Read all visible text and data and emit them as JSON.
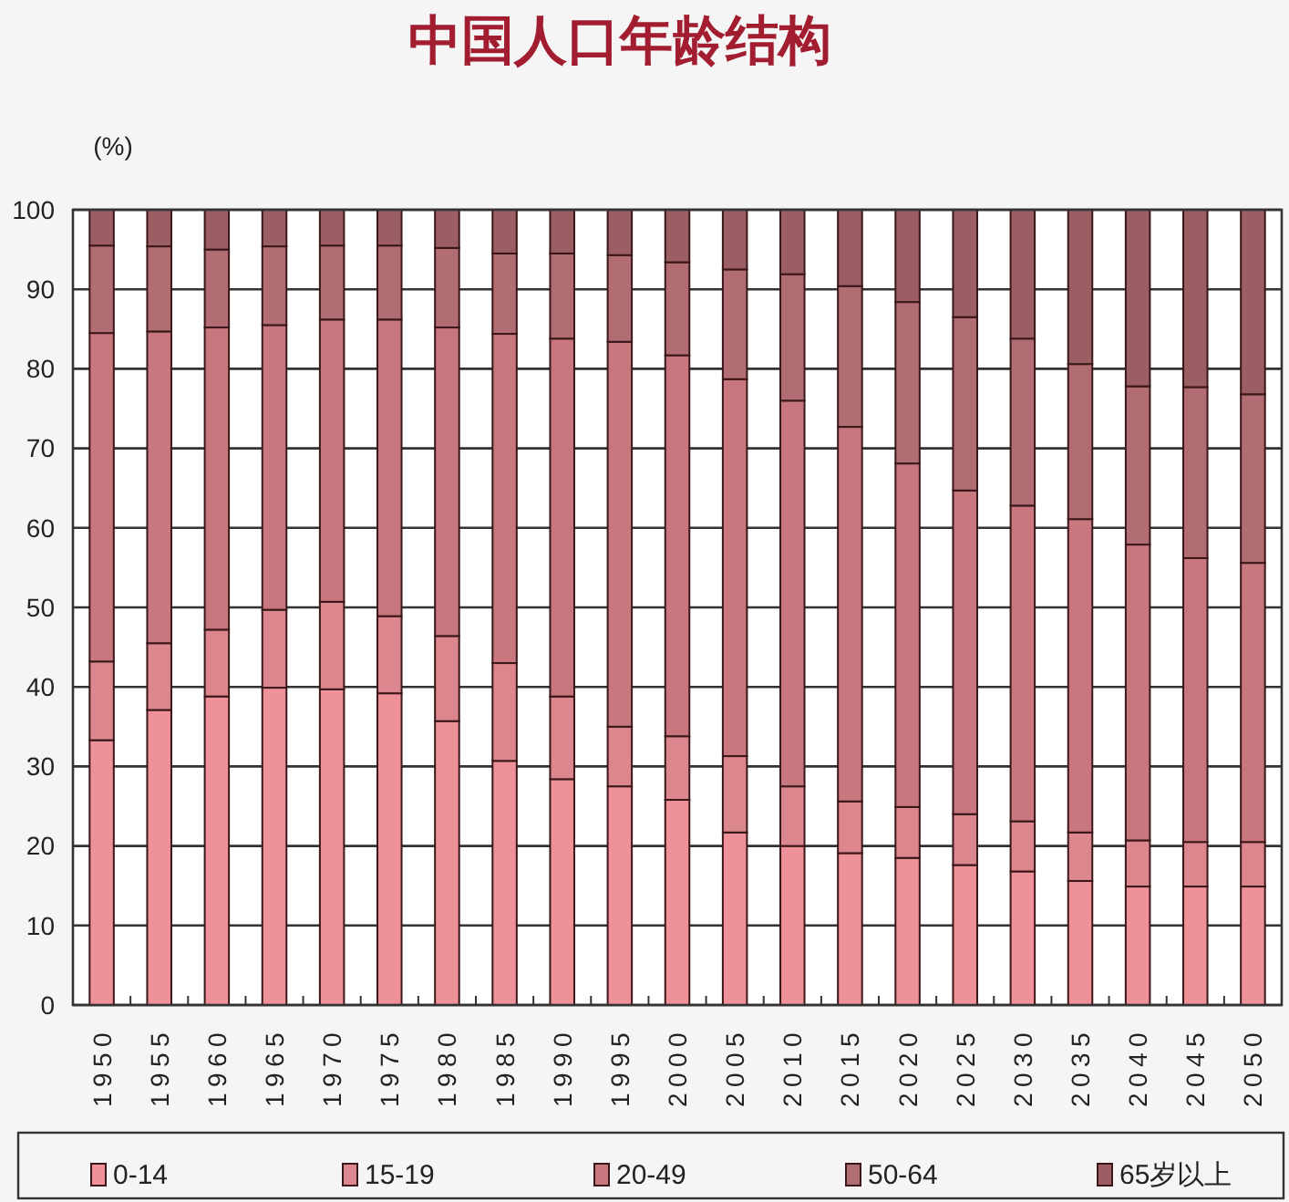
{
  "chart_data": {
    "type": "bar",
    "title": "中国人口年龄结构",
    "ylabel": "(%)",
    "categories": [
      "1950",
      "1955",
      "1960",
      "1965",
      "1970",
      "1975",
      "1980",
      "1985",
      "1990",
      "1995",
      "2000",
      "2005",
      "2010",
      "2015",
      "2020",
      "2025",
      "2030",
      "2035",
      "2040",
      "2045",
      "2050"
    ],
    "series": [
      {
        "name": "0-14",
        "color": "#ef9199",
        "values": [
          33.3,
          37.1,
          38.8,
          39.9,
          39.7,
          39.2,
          35.7,
          30.7,
          28.4,
          27.5,
          25.8,
          21.7,
          20.0,
          19.1,
          18.5,
          17.6,
          16.8,
          15.6,
          14.9,
          14.9,
          14.9
        ]
      },
      {
        "name": "15-19",
        "color": "#db878d",
        "values": [
          9.9,
          8.4,
          8.4,
          9.8,
          11.0,
          9.7,
          10.7,
          12.3,
          10.4,
          7.5,
          8.0,
          9.6,
          7.5,
          6.5,
          6.4,
          6.4,
          6.3,
          6.1,
          5.8,
          5.6,
          5.6
        ]
      },
      {
        "name": "20-49",
        "color": "#c7777d",
        "values": [
          41.3,
          39.2,
          38.0,
          35.8,
          35.5,
          37.3,
          38.8,
          41.4,
          45.0,
          48.4,
          47.9,
          47.4,
          48.5,
          47.1,
          43.2,
          40.7,
          39.7,
          39.4,
          37.2,
          35.7,
          35.1
        ]
      },
      {
        "name": "50-64",
        "color": "#b26d72",
        "values": [
          11.0,
          10.7,
          9.8,
          9.9,
          9.3,
          9.3,
          10.0,
          10.1,
          10.7,
          10.9,
          11.7,
          13.8,
          15.9,
          17.7,
          20.3,
          21.8,
          21.0,
          19.5,
          19.9,
          21.5,
          21.2
        ]
      },
      {
        "name": "65岁以上",
        "color": "#9b5e63",
        "values": [
          4.5,
          4.6,
          5.0,
          4.6,
          4.5,
          4.5,
          4.8,
          5.5,
          5.5,
          5.7,
          6.6,
          7.5,
          8.1,
          9.6,
          11.6,
          13.5,
          16.2,
          19.4,
          22.2,
          22.3,
          23.2
        ]
      }
    ],
    "stacked": true,
    "ylim": [
      0,
      100
    ],
    "yticks": [
      0,
      10,
      20,
      30,
      40,
      50,
      60,
      70,
      80,
      90,
      100
    ],
    "grid": "y",
    "legend": "bottom"
  }
}
